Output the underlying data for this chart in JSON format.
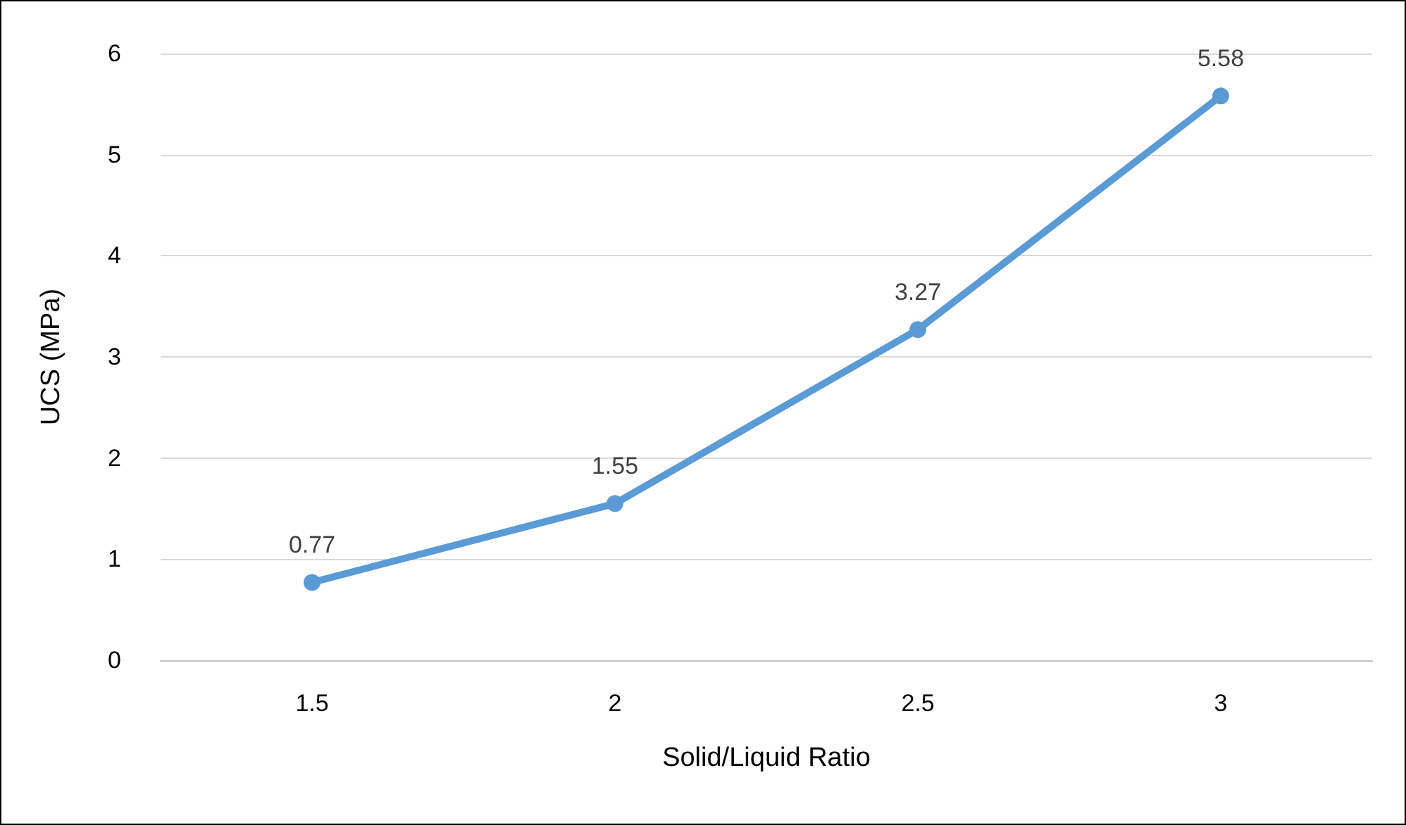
{
  "chart_data": {
    "type": "line",
    "xlabel": "Solid/Liquid Ratio",
    "ylabel": "UCS (MPa)",
    "categories": [
      "1.5",
      "2",
      "2.5",
      "3"
    ],
    "values": [
      0.77,
      1.55,
      3.27,
      5.58
    ],
    "color": "#5b9bd5",
    "ylim": [
      0,
      6
    ],
    "yticks": [
      0,
      1,
      2,
      3,
      4,
      5,
      6
    ],
    "grid": "y",
    "marker": "circle",
    "line_style": "solid",
    "data_labels": true
  }
}
